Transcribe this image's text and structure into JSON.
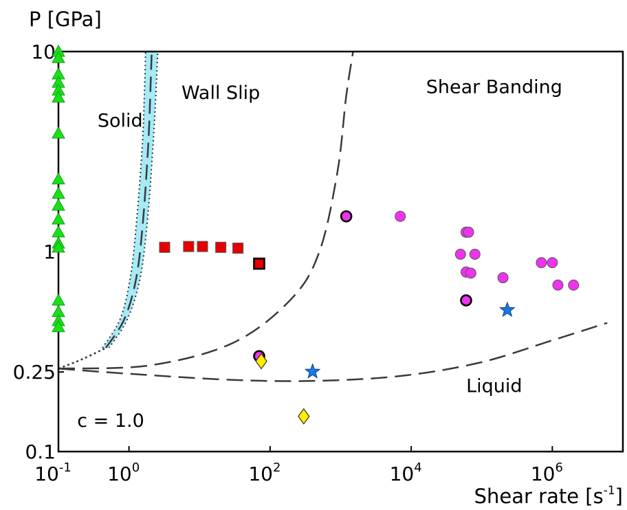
{
  "chart_data": {
    "type": "scatter",
    "x_scale": "log",
    "y_scale": "log",
    "xlim": [
      0.1,
      10000000
    ],
    "ylim": [
      0.1,
      10
    ],
    "ylabel": "P [GPa]",
    "xlabel": "Shear rate [s",
    "xlabel_sup": "-1",
    "xlabel_end": "]",
    "x_ticks": [
      {
        "value": 0.1,
        "base": "10",
        "exp": "-1"
      },
      {
        "value": 1,
        "base": "10",
        "exp": "0"
      },
      {
        "value": 100,
        "base": "10",
        "exp": "2"
      },
      {
        "value": 10000,
        "base": "10",
        "exp": "4"
      },
      {
        "value": 1000000,
        "base": "10",
        "exp": "6"
      }
    ],
    "y_ticks": [
      {
        "value": 10,
        "label": "10"
      },
      {
        "value": 1,
        "label": "1"
      },
      {
        "value": 0.25,
        "label": "0.25"
      },
      {
        "value": 0.1,
        "label": "0.1"
      }
    ],
    "annotations": [
      {
        "text": "Solid",
        "x": 0.75,
        "y": 4.2
      },
      {
        "text": "Wall Slip",
        "x": 20,
        "y": 5.8
      },
      {
        "text": "Shear Banding",
        "x": 150000,
        "y": 6.2
      },
      {
        "text": "Liquid",
        "x": 150000,
        "y": 0.198
      },
      {
        "text": "c = 1.0",
        "x": 0.55,
        "y": 0.133
      }
    ],
    "boundaries": {
      "solid_band": {
        "color": "#87e3f3",
        "left": [
          [
            0.42,
            0.33
          ],
          [
            0.75,
            0.46
          ],
          [
            1.05,
            0.75
          ],
          [
            1.3,
            1.5
          ],
          [
            1.55,
            3.5
          ],
          [
            1.65,
            6.0
          ],
          [
            1.72,
            10.0
          ]
        ],
        "right": [
          [
            0.52,
            0.33
          ],
          [
            0.95,
            0.46
          ],
          [
            1.45,
            0.75
          ],
          [
            1.85,
            1.5
          ],
          [
            2.2,
            3.5
          ],
          [
            2.4,
            6.0
          ],
          [
            2.55,
            10.0
          ]
        ],
        "center": [
          [
            0.47,
            0.33
          ],
          [
            0.86,
            0.46
          ],
          [
            1.28,
            0.75
          ],
          [
            1.6,
            1.5
          ],
          [
            1.88,
            3.5
          ],
          [
            2.0,
            6.0
          ],
          [
            2.1,
            10.0
          ]
        ]
      },
      "solid_liquid_extension": [
        [
          0.1,
          0.26
        ],
        [
          0.22,
          0.29
        ],
        [
          0.47,
          0.33
        ]
      ],
      "wall_slip_shear_banding": [
        [
          0.1,
          0.26
        ],
        [
          2,
          0.27
        ],
        [
          30,
          0.35
        ],
        [
          200,
          0.58
        ],
        [
          500,
          1.0
        ],
        [
          900,
          2.5
        ],
        [
          1200,
          6.0
        ],
        [
          1500,
          10.0
        ]
      ],
      "liquid": [
        [
          0.1,
          0.26
        ],
        [
          1,
          0.245
        ],
        [
          30,
          0.228
        ],
        [
          500,
          0.226
        ],
        [
          8000,
          0.24
        ],
        [
          100000,
          0.28
        ],
        [
          1000000,
          0.36
        ],
        [
          6000000,
          0.44
        ]
      ]
    },
    "series": [
      {
        "marker": "triangle",
        "color": "#19e019",
        "points": [
          [
            0.1,
            10
          ],
          [
            0.1,
            9.3
          ],
          [
            0.1,
            7.7
          ],
          [
            0.1,
            7.0
          ],
          [
            0.1,
            6.4
          ],
          [
            0.1,
            5.9
          ],
          [
            0.1,
            3.9
          ],
          [
            0.1,
            2.3
          ],
          [
            0.1,
            1.95
          ],
          [
            0.1,
            1.7
          ],
          [
            0.1,
            1.45
          ],
          [
            0.1,
            1.25
          ],
          [
            0.1,
            1.1
          ],
          [
            0.1,
            1.05
          ],
          [
            0.1,
            0.57
          ],
          [
            0.1,
            0.5
          ],
          [
            0.1,
            0.45
          ],
          [
            0.1,
            0.42
          ]
        ]
      },
      {
        "marker": "square",
        "color": "#e60000",
        "points": [
          [
            3.2,
            1.05
          ],
          [
            7,
            1.06
          ],
          [
            11,
            1.06
          ],
          [
            20,
            1.05
          ],
          [
            35,
            1.04
          ]
        ]
      },
      {
        "marker": "square",
        "color": "#e60000",
        "outlined": true,
        "points": [
          [
            70,
            0.87
          ]
        ]
      },
      {
        "marker": "circle",
        "color": "#ee33ee",
        "points": [
          [
            7000,
            1.5
          ],
          [
            60000,
            1.25
          ],
          [
            65000,
            1.25
          ],
          [
            50000,
            0.97
          ],
          [
            80000,
            0.97
          ],
          [
            60000,
            0.79
          ],
          [
            70000,
            0.78
          ],
          [
            200000,
            0.74
          ],
          [
            700000,
            0.88
          ],
          [
            1000000,
            0.88
          ],
          [
            1200000,
            0.68
          ],
          [
            2000000,
            0.68
          ]
        ]
      },
      {
        "marker": "circle",
        "color": "#ee33ee",
        "outlined": true,
        "points": [
          [
            1200,
            1.5
          ],
          [
            70,
            0.3
          ],
          [
            60000,
            0.57
          ]
        ]
      },
      {
        "marker": "diamond",
        "color": "#ffee00",
        "points": [
          [
            75,
            0.283
          ],
          [
            300,
            0.15
          ]
        ]
      },
      {
        "marker": "star",
        "color": "#1a78e6",
        "points": [
          [
            400,
            0.251
          ],
          [
            230000,
            0.51
          ]
        ]
      }
    ]
  }
}
